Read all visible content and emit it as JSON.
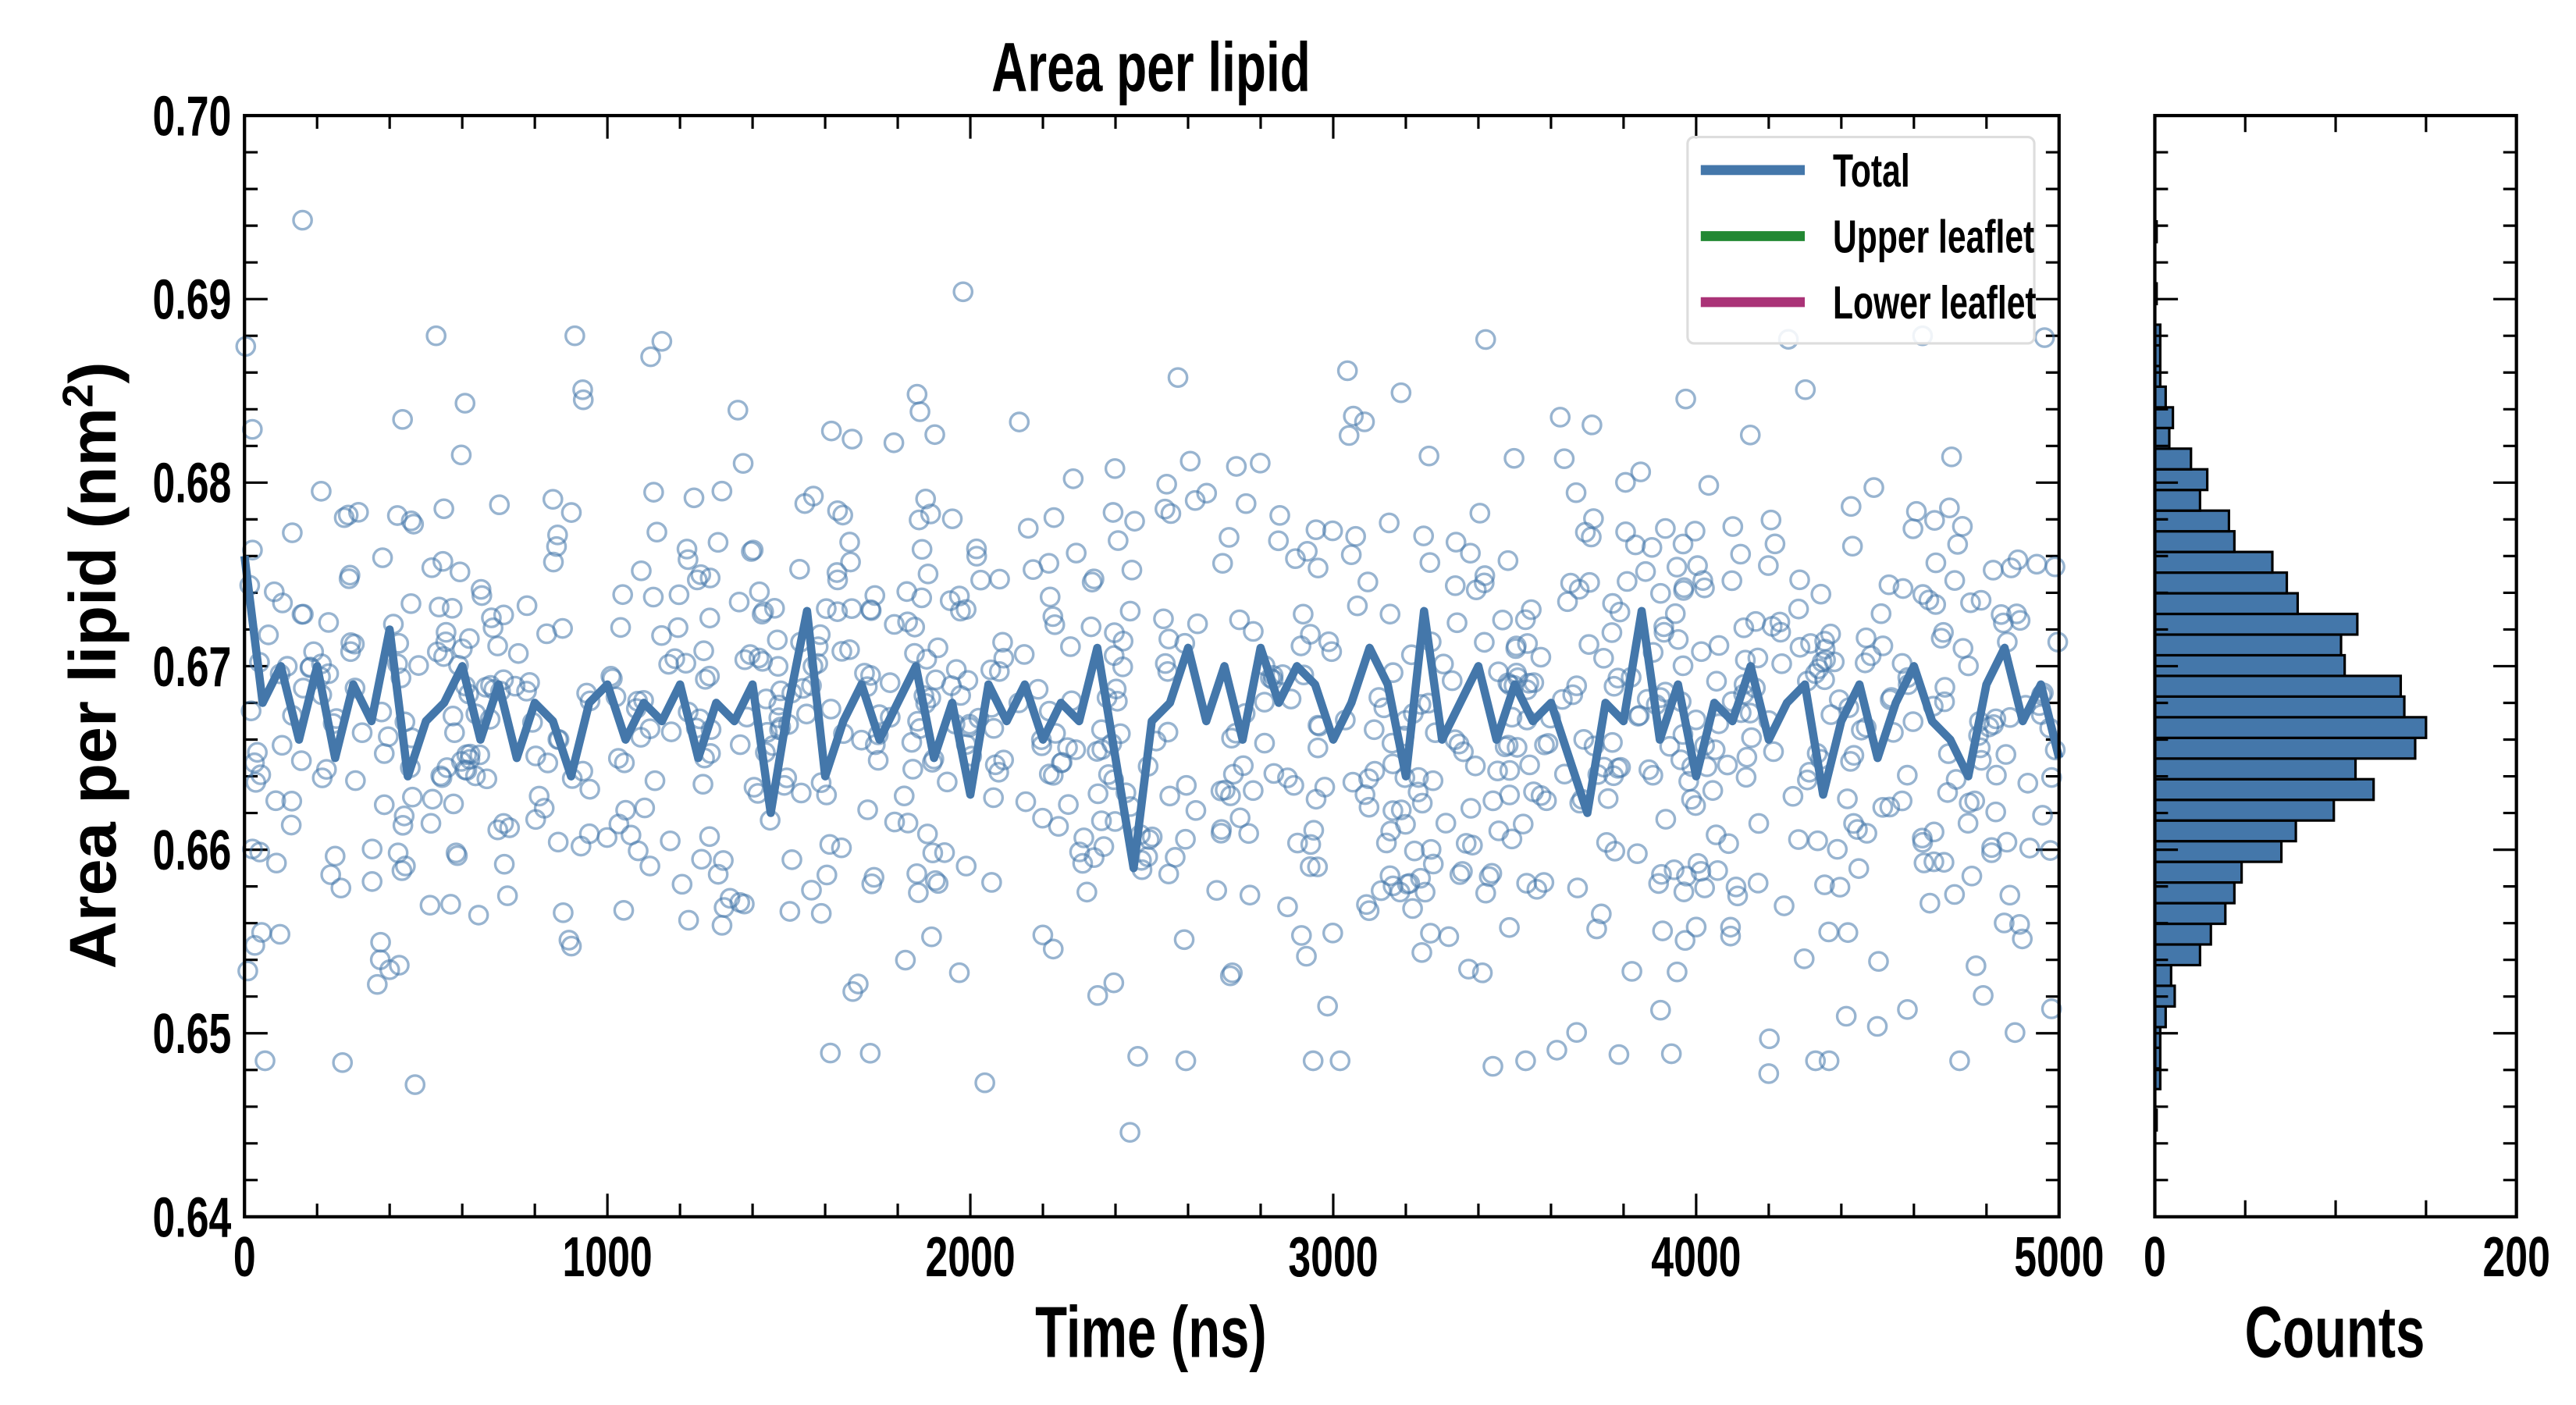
{
  "chart_data": [
    {
      "type": "line",
      "title": "Area per lipid",
      "xlabel": "Time (ns)",
      "ylabel": "Area per lipid (nm",
      "ylabel_sup": "2",
      "ylabel_close": ")",
      "xlim": [
        0,
        5000
      ],
      "ylim": [
        0.64,
        0.7
      ],
      "xticks": [
        0,
        1000,
        2000,
        3000,
        4000,
        5000
      ],
      "xtick_labels": [
        "0",
        "1000",
        "2000",
        "3000",
        "4000",
        "5000"
      ],
      "yticks": [
        0.64,
        0.65,
        0.66,
        0.67,
        0.68,
        0.69,
        0.7
      ],
      "ytick_labels": [
        "0.64",
        "0.65",
        "0.66",
        "0.67",
        "0.68",
        "0.69",
        "0.70"
      ],
      "grid": false,
      "legend": {
        "placement": "top-right",
        "entries": [
          {
            "label": "Total",
            "color": "#4477aa"
          },
          {
            "label": "Upper leaflet",
            "color": "#228833"
          },
          {
            "label": "Lower leaflet",
            "color": "#aa3377"
          }
        ]
      },
      "scatter": {
        "series": "Total (raw)",
        "color": "#4477aa",
        "marker": "open-circle",
        "n_points": 1000,
        "mean": 0.667,
        "std": 0.0075,
        "outliers": [
          [
            160,
            0.6943
          ],
          [
            1980,
            0.6904
          ],
          [
            1150,
            0.6877
          ],
          [
            3420,
            0.6878
          ],
          [
            4960,
            0.6879
          ],
          [
            2440,
            0.6446
          ],
          [
            470,
            0.6472
          ],
          [
            2040,
            0.6473
          ],
          [
            4200,
            0.6478
          ],
          [
            270,
            0.6484
          ],
          [
            3440,
            0.6482
          ]
        ]
      },
      "line": {
        "series": "Total",
        "color": "#4477aa",
        "x_step": 50,
        "values": [
          0.676,
          0.668,
          0.67,
          0.666,
          0.67,
          0.665,
          0.669,
          0.667,
          0.672,
          0.664,
          0.667,
          0.668,
          0.67,
          0.666,
          0.669,
          0.665,
          0.668,
          0.667,
          0.664,
          0.668,
          0.669,
          0.666,
          0.668,
          0.667,
          0.669,
          0.665,
          0.668,
          0.667,
          0.669,
          0.662,
          0.668,
          0.673,
          0.664,
          0.667,
          0.669,
          0.666,
          0.668,
          0.67,
          0.665,
          0.668,
          0.663,
          0.669,
          0.667,
          0.669,
          0.666,
          0.668,
          0.667,
          0.671,
          0.665,
          0.659,
          0.667,
          0.668,
          0.671,
          0.667,
          0.67,
          0.666,
          0.671,
          0.668,
          0.67,
          0.669,
          0.666,
          0.668,
          0.671,
          0.669,
          0.664,
          0.673,
          0.666,
          0.668,
          0.67,
          0.666,
          0.669,
          0.667,
          0.668,
          0.665,
          0.662,
          0.668,
          0.667,
          0.673,
          0.666,
          0.669,
          0.664,
          0.668,
          0.667,
          0.67,
          0.666,
          0.668,
          0.669,
          0.663,
          0.667,
          0.669,
          0.665,
          0.668,
          0.67,
          0.667,
          0.666,
          0.664,
          0.669,
          0.671,
          0.667,
          0.669,
          0.665
        ]
      }
    },
    {
      "type": "bar",
      "orientation": "horizontal",
      "xlabel": "Counts",
      "xlim": [
        0,
        200
      ],
      "xtick_labels": [
        "0",
        "200"
      ],
      "ylim": [
        0.64,
        0.7
      ],
      "color": "#4477aa",
      "edgecolor": "#000000",
      "bin_start_center": 0.64527,
      "bin_width": 0.0011256,
      "counts": [
        1,
        0,
        3,
        3,
        3,
        6,
        11,
        9,
        25,
        31,
        39,
        44,
        48,
        70,
        78,
        99,
        121,
        111,
        144,
        150,
        138,
        136,
        105,
        103,
        112,
        79,
        73,
        65,
        44,
        41,
        25,
        29,
        20,
        8,
        10,
        6,
        3,
        3,
        3,
        0,
        1,
        0,
        0,
        1
      ]
    }
  ]
}
